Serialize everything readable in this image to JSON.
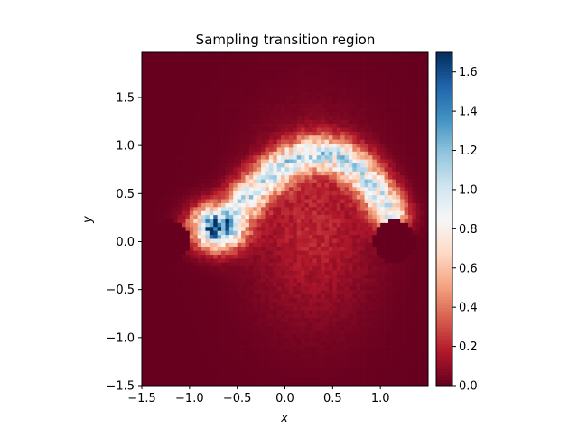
{
  "chart_data": {
    "type": "heatmap",
    "title": "Sampling transition region",
    "xlabel": "x",
    "ylabel": "y",
    "xlim": [
      -1.5,
      1.5
    ],
    "ylim": [
      -1.5,
      1.97
    ],
    "x_ticks": [
      -1.5,
      -1.0,
      -0.5,
      0.0,
      0.5,
      1.0
    ],
    "x_tick_labels": [
      "−1.5",
      "−1.0",
      "−0.5",
      "0.0",
      "0.5",
      "1.0"
    ],
    "y_ticks": [
      -1.5,
      -1.0,
      -0.5,
      0.0,
      0.5,
      1.0,
      1.5
    ],
    "y_tick_labels": [
      "−1.5",
      "−1.0",
      "−0.5",
      "0.0",
      "0.5",
      "1.0",
      "1.5"
    ],
    "colormap": "RdBu",
    "colorbar": {
      "min": 0.0,
      "max": 1.7,
      "ticks": [
        0.0,
        0.2,
        0.4,
        0.6,
        0.8,
        1.0,
        1.2,
        1.4,
        1.6
      ],
      "tick_labels": [
        "0.0",
        "0.2",
        "0.4",
        "0.6",
        "0.8",
        "1.0",
        "1.2",
        "1.4",
        "1.6"
      ]
    },
    "density_features": [
      {
        "kind": "blob",
        "center": [
          -0.7,
          0.15
        ],
        "peak": 1.6
      },
      {
        "kind": "arc",
        "from": [
          -0.4,
          0.45
        ],
        "through": [
          0.5,
          1.45
        ],
        "to": [
          1.1,
          0.3
        ],
        "peak": 0.9
      },
      {
        "kind": "hole",
        "center": [
          -1.22,
          0.0
        ],
        "radius": 0.22
      },
      {
        "kind": "hole",
        "center": [
          1.15,
          0.0
        ],
        "radius": 0.22
      }
    ]
  }
}
